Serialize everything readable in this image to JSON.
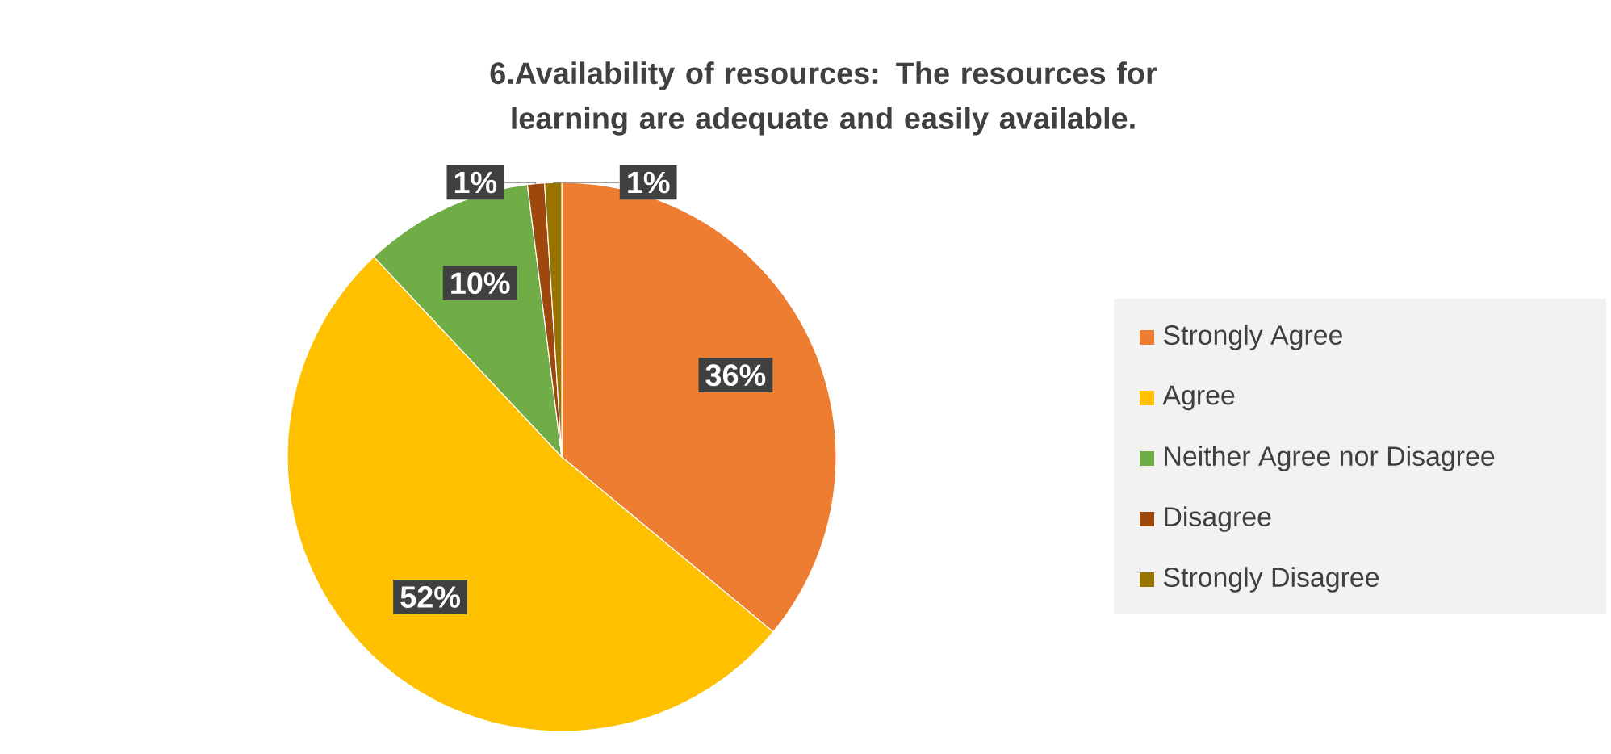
{
  "chart_data": {
    "type": "pie",
    "title": "6.Availability of resources: The resources for learning are adequate and easily available.",
    "categories": [
      "Strongly Agree",
      "Agree",
      "Neither Agree nor Disagree",
      "Disagree",
      "Strongly Disagree"
    ],
    "values": [
      36,
      52,
      10,
      1,
      1
    ],
    "value_labels": [
      "36%",
      "52%",
      "10%",
      "1%",
      "1%"
    ],
    "colors": [
      "#ed7d31",
      "#ffc000",
      "#70ad47",
      "#9e480e",
      "#997300"
    ],
    "legend": "right"
  }
}
